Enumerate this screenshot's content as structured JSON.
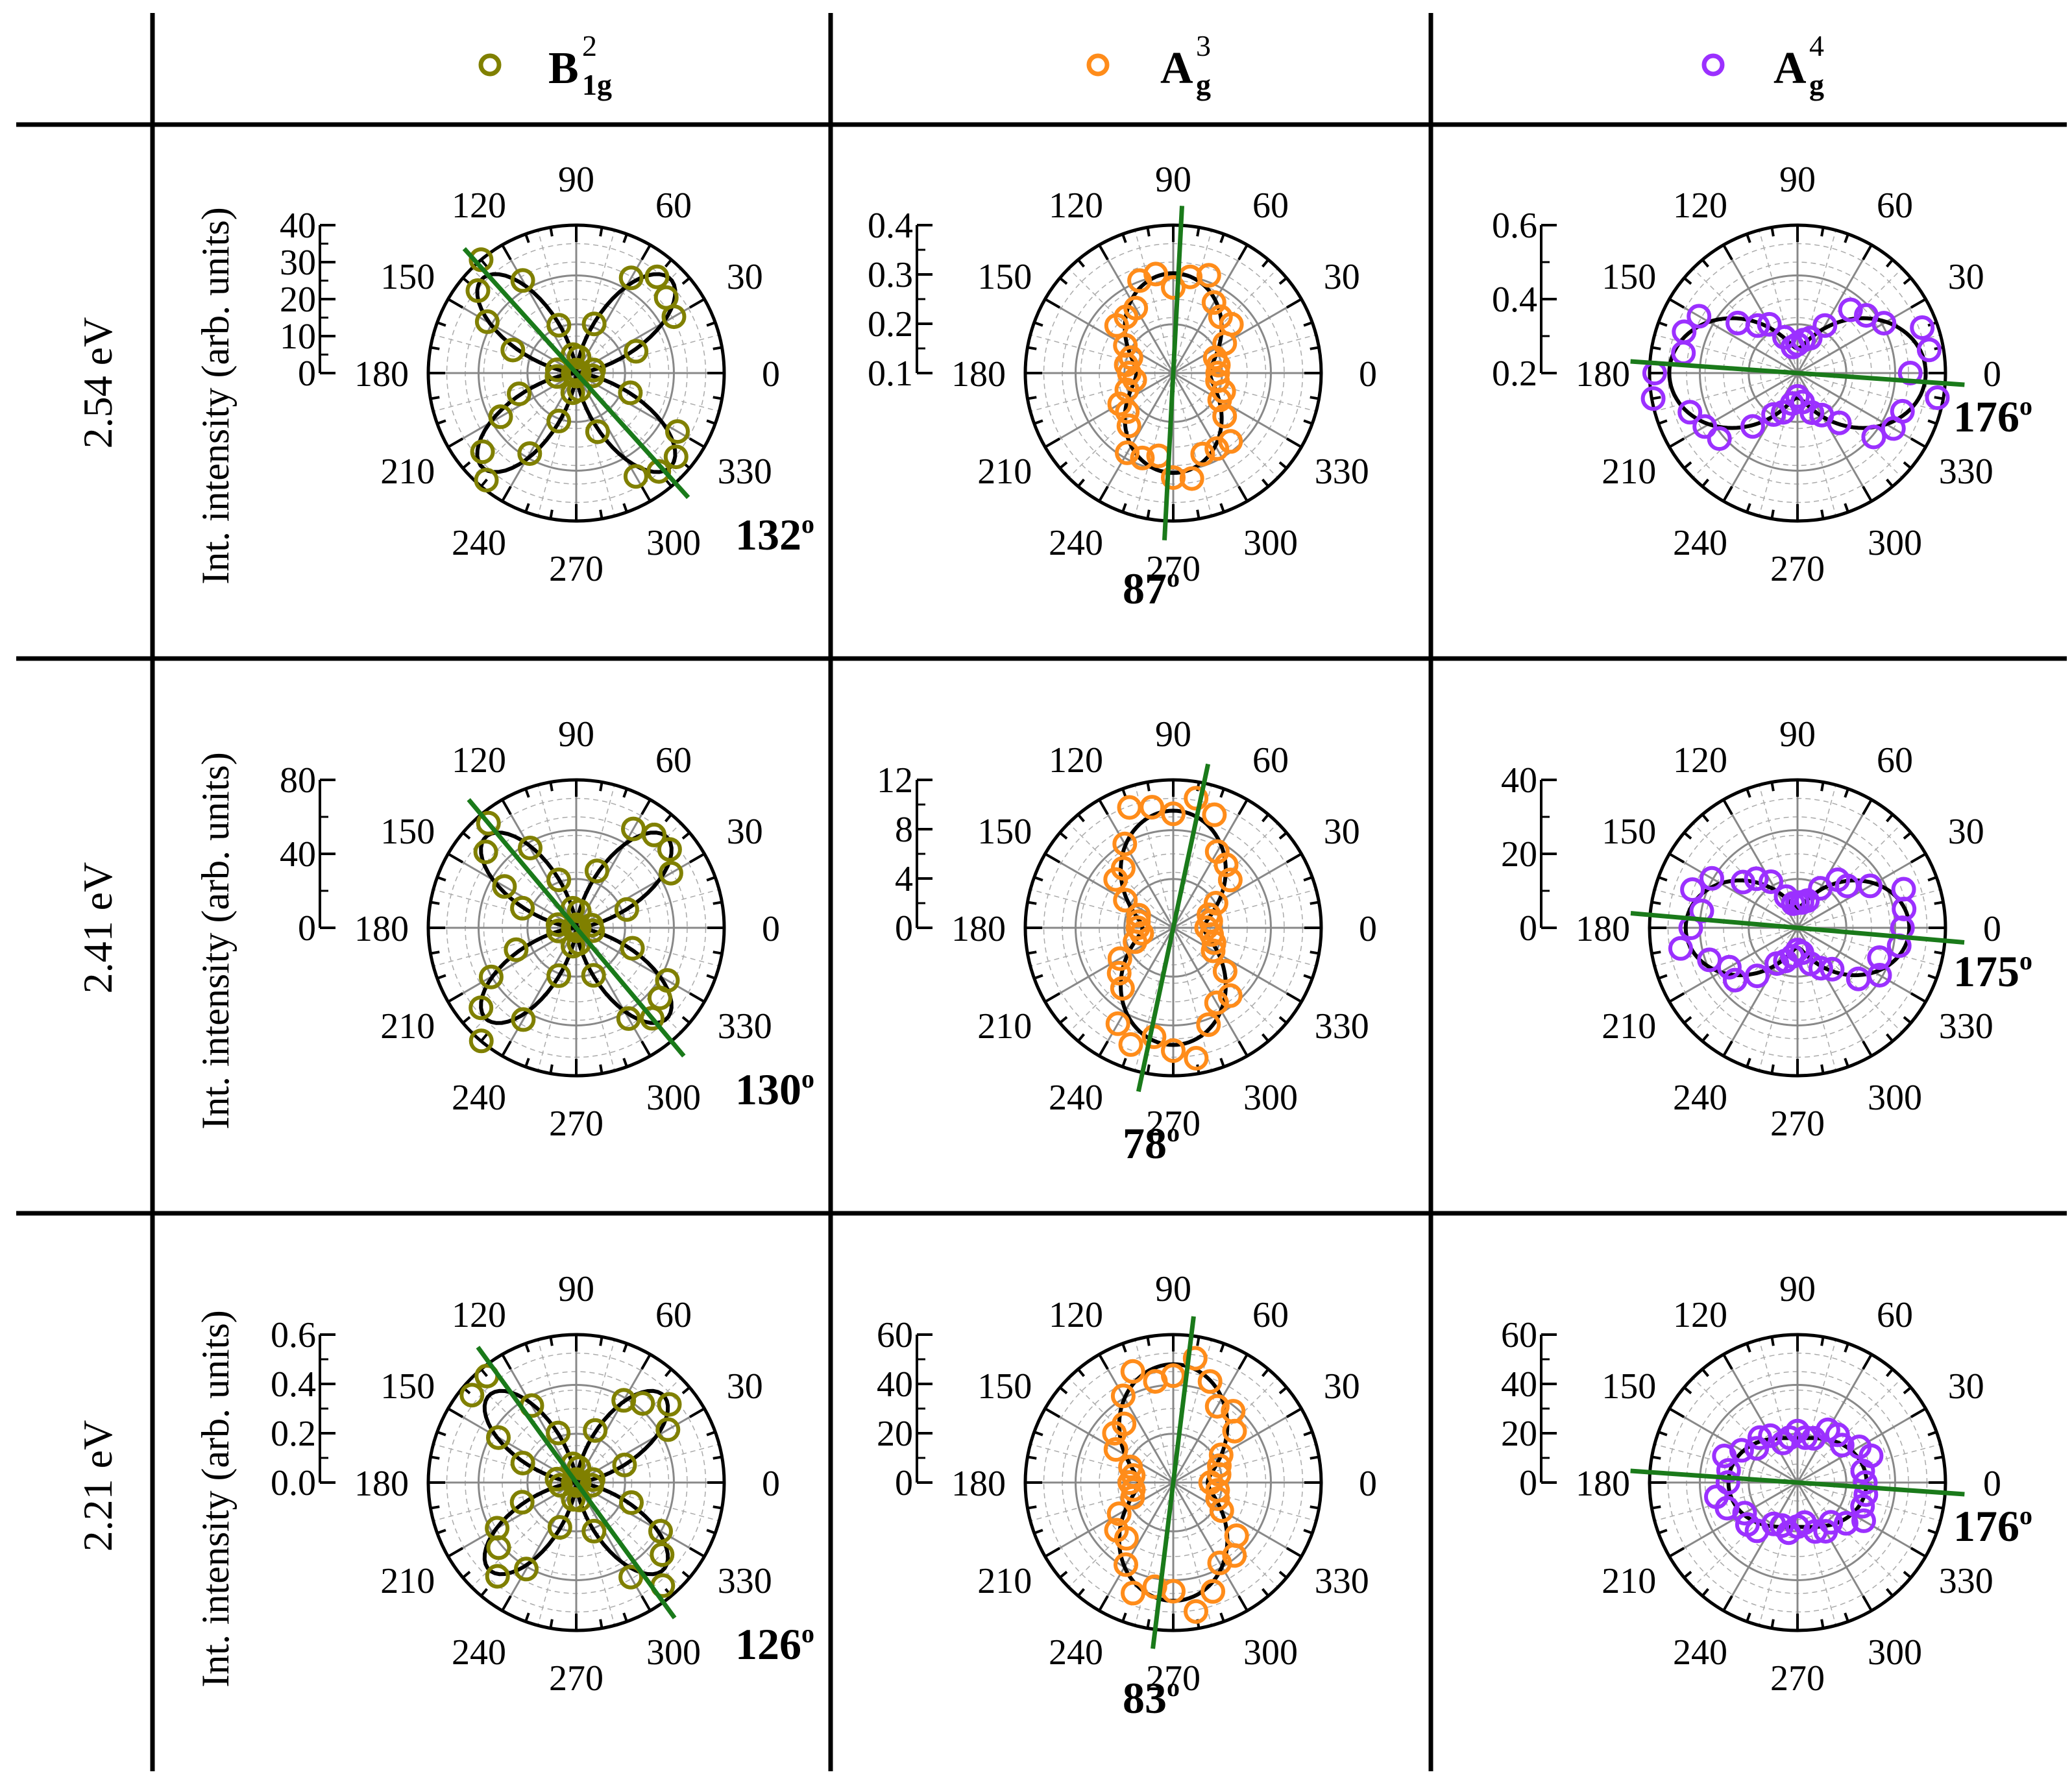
{
  "columns": [
    {
      "symbol": "B",
      "sub": "1g",
      "sup": "2",
      "color": "#808000"
    },
    {
      "symbol": "A",
      "sub": "g",
      "sup": "3",
      "color": "#ff8c1a"
    },
    {
      "symbol": "A",
      "sub": "g",
      "sup": "4",
      "color": "#9b30ff"
    }
  ],
  "rows": [
    {
      "label": "2.54 eV"
    },
    {
      "label": "2.41 eV"
    },
    {
      "label": "2.21 eV"
    }
  ],
  "ylabel": "Int. intensity (arb. units)",
  "angle_ticks": [
    "0",
    "30",
    "60",
    "90",
    "120",
    "150",
    "180",
    "210",
    "240",
    "270",
    "300",
    "330"
  ],
  "colors": {
    "fit": "#000000",
    "axis_line": "#1a7a1a",
    "grid": "#888888",
    "grid_minor": "#aaaaaa"
  },
  "chart_data": [
    {
      "type": "scatter",
      "coord": "polar",
      "row": 0,
      "col": 0,
      "mode": "B1g2",
      "energy": "2.54 eV",
      "r_ticks": [
        "0",
        "10",
        "20",
        "30",
        "40"
      ],
      "r_max": 40,
      "fit": {
        "amp": 36,
        "angle": 45
      },
      "axis_angle": 132,
      "axis_label": "132",
      "axis_sup": "o"
    },
    {
      "type": "scatter",
      "coord": "polar",
      "row": 0,
      "col": 1,
      "mode": "Ag3",
      "energy": "2.54 eV",
      "r_ticks": [
        "0.1",
        "0.2",
        "0.3",
        "0.4"
      ],
      "r_max": 0.4,
      "fit": {
        "a": 0.27,
        "b": 0.1
      },
      "axis_angle": 87,
      "axis_label": "87",
      "axis_sup": "o"
    },
    {
      "type": "scatter",
      "coord": "polar",
      "row": 0,
      "col": 2,
      "mode": "Ag4",
      "energy": "2.54 eV",
      "r_ticks": [
        "0.2",
        "0.4",
        "0.6"
      ],
      "r_max": 0.6,
      "fit": {
        "a": 0.1,
        "b": 0.52
      },
      "axis_angle": 176,
      "axis_label": "176",
      "axis_sup": "o"
    },
    {
      "type": "scatter",
      "coord": "polar",
      "row": 1,
      "col": 0,
      "mode": "B1g2",
      "energy": "2.41 eV",
      "r_ticks": [
        "0",
        "40",
        "80"
      ],
      "r_max": 90,
      "fit": {
        "amp": 78,
        "angle": 40
      },
      "axis_angle": 130,
      "axis_label": "130",
      "axis_sup": "o"
    },
    {
      "type": "scatter",
      "coord": "polar",
      "row": 1,
      "col": 1,
      "mode": "Ag3",
      "energy": "2.41 eV",
      "r_ticks": [
        "0",
        "4",
        "8",
        "12"
      ],
      "r_max": 12,
      "fit": {
        "a": 9.5,
        "b": 2.5
      },
      "axis_angle": 78,
      "axis_label": "78",
      "axis_sup": "o"
    },
    {
      "type": "scatter",
      "coord": "polar",
      "row": 1,
      "col": 2,
      "mode": "Ag4",
      "energy": "2.41 eV",
      "r_ticks": [
        "0",
        "20",
        "40"
      ],
      "r_max": 45,
      "fit": {
        "a": 6,
        "b": 34
      },
      "axis_angle": 175,
      "axis_label": "175",
      "axis_sup": "o"
    },
    {
      "type": "scatter",
      "coord": "polar",
      "row": 2,
      "col": 0,
      "mode": "B1g2",
      "energy": "2.21 eV",
      "r_ticks": [
        "0.0",
        "0.2",
        "0.4",
        "0.6"
      ],
      "r_max": 0.6,
      "fit": {
        "amp": 0.5,
        "angle": 45
      },
      "axis_angle": 126,
      "axis_label": "126",
      "axis_sup": "o"
    },
    {
      "type": "scatter",
      "coord": "polar",
      "row": 2,
      "col": 1,
      "mode": "Ag3",
      "energy": "2.21 eV",
      "r_ticks": [
        "0",
        "20",
        "40",
        "60"
      ],
      "r_max": 60,
      "fit": {
        "a": 48,
        "b": 14
      },
      "axis_angle": 83,
      "axis_label": "83",
      "axis_sup": "o"
    },
    {
      "type": "scatter",
      "coord": "polar",
      "row": 2,
      "col": 2,
      "mode": "Ag4",
      "energy": "2.21 eV",
      "r_ticks": [
        "0",
        "20",
        "40",
        "60"
      ],
      "r_max": 60,
      "fit": {
        "a": 18,
        "b": 28
      },
      "axis_angle": 176,
      "axis_label": "176",
      "axis_sup": "o"
    }
  ]
}
